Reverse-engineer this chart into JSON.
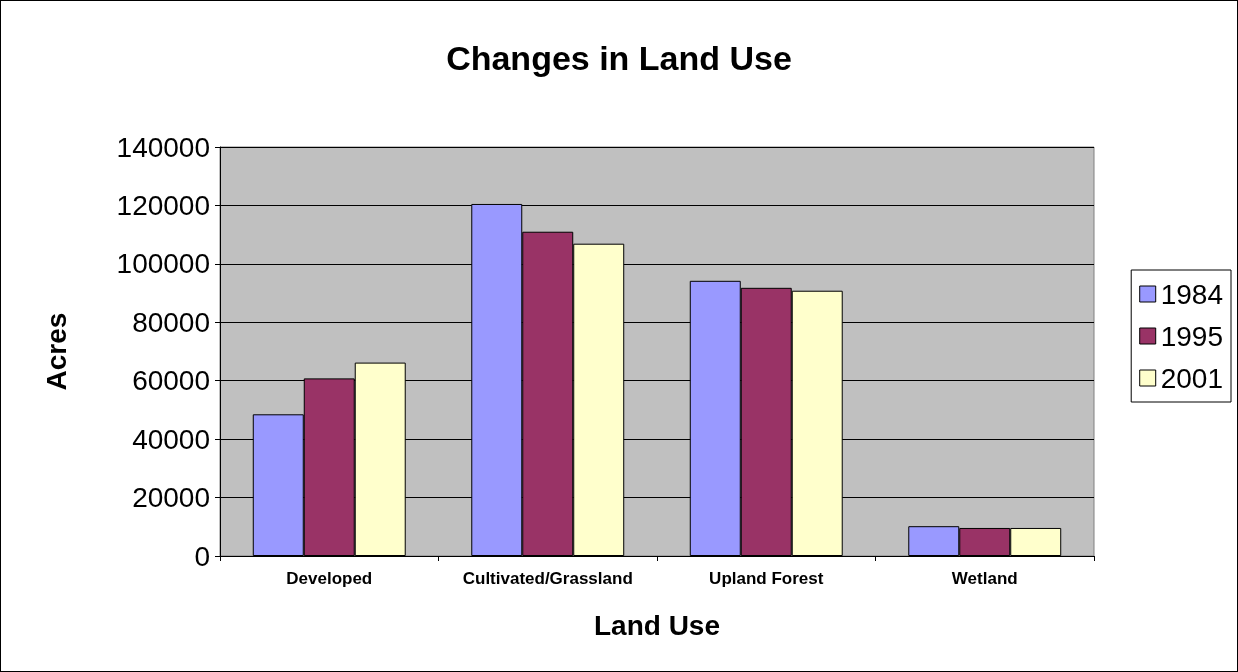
{
  "chart_data": {
    "type": "bar",
    "title": "Changes in Land Use",
    "xlabel": "Land Use",
    "ylabel": "Acres",
    "categories": [
      "Developed",
      "Cultivated/Grassland",
      "Upland Forest",
      "Wetland"
    ],
    "series": [
      {
        "name": "1984",
        "color": "#9999ff",
        "values": [
          48500,
          120500,
          94200,
          10200
        ]
      },
      {
        "name": "1995",
        "color": "#993366",
        "values": [
          60800,
          111000,
          91800,
          9600
        ]
      },
      {
        "name": "2001",
        "color": "#ffffcc",
        "values": [
          66200,
          106900,
          90800,
          9600
        ]
      }
    ],
    "ylim": [
      0,
      140000
    ],
    "yticks": [
      0,
      20000,
      40000,
      60000,
      80000,
      100000,
      120000,
      140000
    ],
    "grid": "y",
    "legend": "right"
  }
}
